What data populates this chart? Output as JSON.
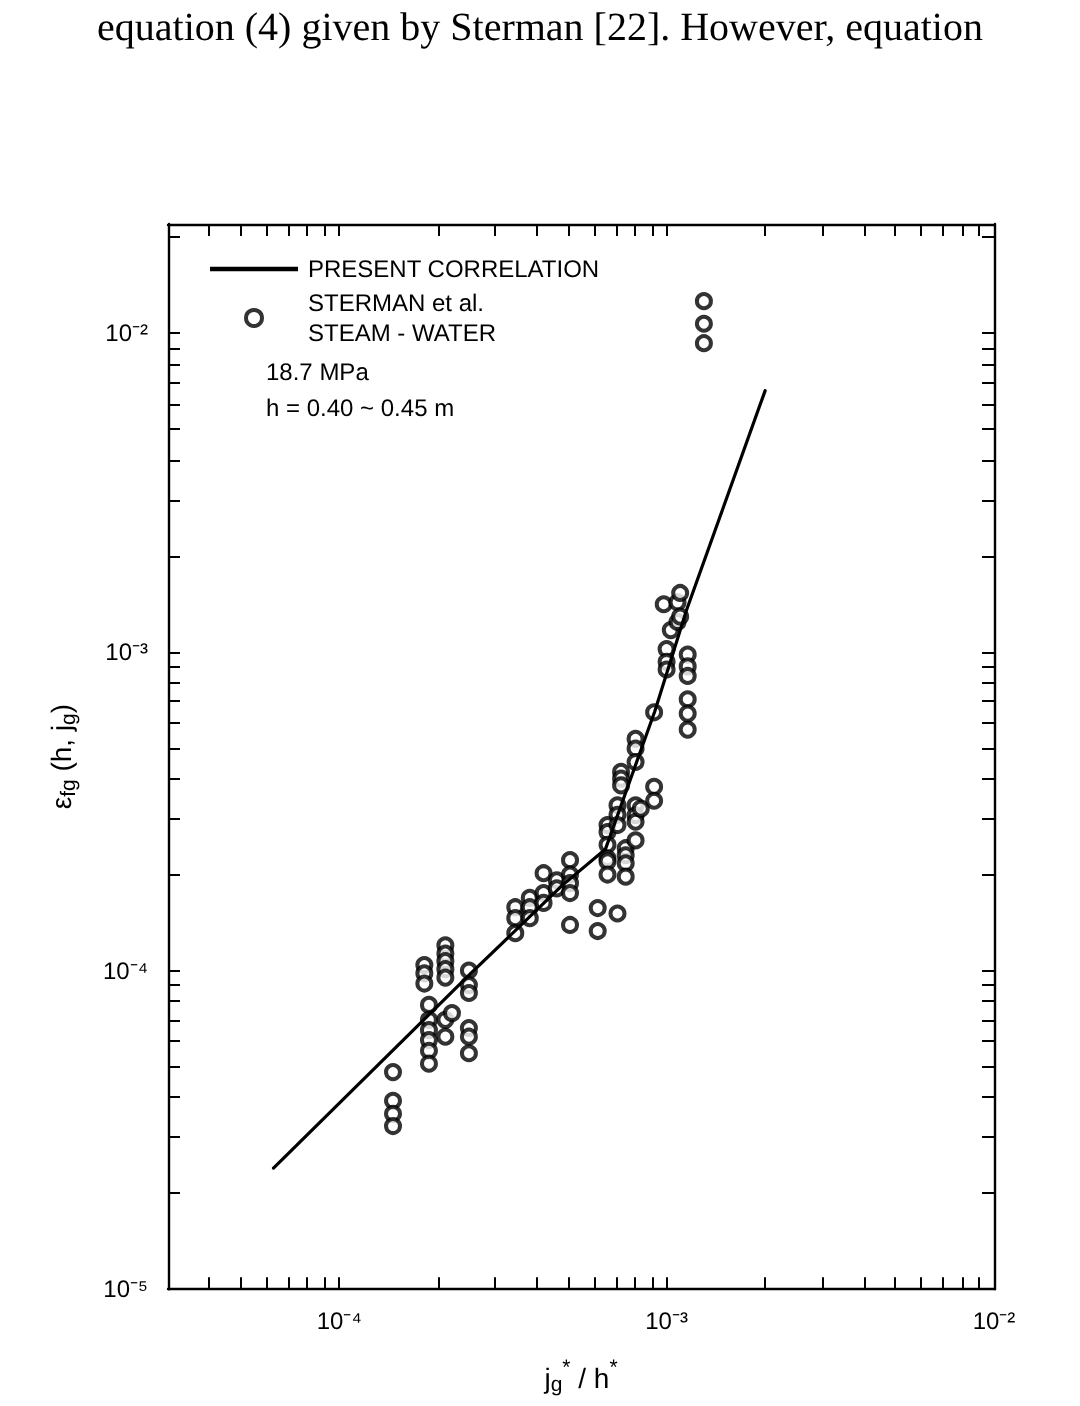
{
  "chart_data": {
    "type": "scatter",
    "xlabel": "j$_{g}$$^{*}$ / h$^{*}$",
    "ylabel": "ε$_{fg}$ (h, j$_{g}$)",
    "annotations": [
      "equation (4) given by Sterman [22]. However, equation",
      "18.7 MPa",
      "h = 0.40 ~ 0.45 m"
    ],
    "log": "xy",
    "grid": false,
    "legend": "top left",
    "xlim": [
      3e-05,
      0.01
    ],
    "ylim": [
      1e-05,
      0.022
    ],
    "xticks": [
      {
        "value": 4e-05,
        "label": null
      },
      {
        "value": 5e-05,
        "label": null
      },
      {
        "value": 6e-05,
        "label": null
      },
      {
        "value": 7e-05,
        "label": null
      },
      {
        "value": 8e-05,
        "label": null
      },
      {
        "value": 9e-05,
        "label": null
      },
      {
        "value": 0.0001,
        "label": "10⁻⁴"
      },
      {
        "value": 0.0002,
        "label": null
      },
      {
        "value": 0.0003,
        "label": null
      },
      {
        "value": 0.0004,
        "label": null
      },
      {
        "value": 0.0005,
        "label": null
      },
      {
        "value": 0.0006,
        "label": null
      },
      {
        "value": 0.0007,
        "label": null
      },
      {
        "value": 0.0008,
        "label": null
      },
      {
        "value": 0.0009,
        "label": null
      },
      {
        "value": 0.001,
        "label": "10⁻³"
      },
      {
        "value": 0.002,
        "label": null
      },
      {
        "value": 0.003,
        "label": null
      },
      {
        "value": 0.004,
        "label": null
      },
      {
        "value": 0.005,
        "label": null
      },
      {
        "value": 0.006,
        "label": null
      },
      {
        "value": 0.007,
        "label": null
      },
      {
        "value": 0.008,
        "label": null
      },
      {
        "value": 0.009,
        "label": null
      },
      {
        "value": 0.01,
        "label": "10⁻²"
      }
    ],
    "yticks": [
      {
        "value": 1e-05,
        "label": "10⁻⁵"
      },
      {
        "value": 2e-05,
        "label": null
      },
      {
        "value": 3e-05,
        "label": null
      },
      {
        "value": 4e-05,
        "label": null
      },
      {
        "value": 5e-05,
        "label": null
      },
      {
        "value": 6e-05,
        "label": null
      },
      {
        "value": 7e-05,
        "label": null
      },
      {
        "value": 8e-05,
        "label": null
      },
      {
        "value": 9e-05,
        "label": null
      },
      {
        "value": 0.0001,
        "label": "10⁻⁴"
      },
      {
        "value": 0.0002,
        "label": null
      },
      {
        "value": 0.0003,
        "label": null
      },
      {
        "value": 0.0004,
        "label": null
      },
      {
        "value": 0.0005,
        "label": null
      },
      {
        "value": 0.0006,
        "label": null
      },
      {
        "value": 0.0007,
        "label": null
      },
      {
        "value": 0.0008,
        "label": null
      },
      {
        "value": 0.0009,
        "label": null
      },
      {
        "value": 0.001,
        "label": "10⁻³"
      },
      {
        "value": 0.002,
        "label": null
      },
      {
        "value": 0.003,
        "label": null
      },
      {
        "value": 0.004,
        "label": null
      },
      {
        "value": 0.005,
        "label": null
      },
      {
        "value": 0.006,
        "label": null
      },
      {
        "value": 0.007,
        "label": null
      },
      {
        "value": 0.008,
        "label": null
      },
      {
        "value": 0.009,
        "label": null
      },
      {
        "value": 0.01,
        "label": "10⁻²"
      },
      {
        "value": 0.02,
        "label": null
      }
    ],
    "series": [
      {
        "name": "PRESENT CORRELATION",
        "type": "line",
        "color": "#000000",
        "marker": "none",
        "line_style": "solid",
        "x": [
          6.3e-05,
          0.00025,
          0.00048,
          0.00065,
          0.00092,
          0.00115,
          0.002
        ],
        "values": [
          2.4e-05,
          9.7e-05,
          0.000185,
          0.00024,
          0.00065,
          0.00135,
          0.0066
        ]
      },
      {
        "name": "STERMAN et al.\nSTEAM - WATER",
        "color": "#000000",
        "marker": "circle",
        "x": [
          0.000146,
          0.000146,
          0.000146,
          0.000146,
          0.000182,
          0.000182,
          0.000182,
          0.000188,
          0.000188,
          0.000188,
          0.000188,
          0.000188,
          0.000188,
          0.000211,
          0.000211,
          0.000211,
          0.000211,
          0.000211,
          0.000211,
          0.000211,
          0.000221,
          0.000249,
          0.000249,
          0.000249,
          0.000249,
          0.000249,
          0.000249,
          0.000345,
          0.000345,
          0.000345,
          0.000382,
          0.000382,
          0.000382,
          0.000421,
          0.000421,
          0.000421,
          0.000462,
          0.000462,
          0.000507,
          0.000507,
          0.000507,
          0.000507,
          0.000507,
          0.000616,
          0.000616,
          0.00066,
          0.00066,
          0.00066,
          0.00066,
          0.00066,
          0.00066,
          0.000708,
          0.000708,
          0.000708,
          0.000708,
          0.000726,
          0.000726,
          0.000726,
          0.00075,
          0.00075,
          0.00075,
          0.00075,
          0.000804,
          0.000804,
          0.000804,
          0.000804,
          0.000804,
          0.000804,
          0.000804,
          0.000834,
          0.000916,
          0.000916,
          0.000916,
          0.001,
          0.001,
          0.001,
          0.00103,
          0.00098,
          0.00108,
          0.00108,
          0.0011,
          0.0011,
          0.00116,
          0.00116,
          0.00116,
          0.00116,
          0.00116,
          0.00116,
          0.0013,
          0.0013,
          0.0013
        ],
        "values": [
          4.8e-05,
          3.9e-05,
          3.55e-05,
          3.25e-05,
          0.000104,
          9.8e-05,
          9.1e-05,
          7.8e-05,
          7e-05,
          6.5e-05,
          6.05e-05,
          5.6e-05,
          5.1e-05,
          0.00012,
          0.000113,
          0.000107,
          0.000101,
          9.5e-05,
          7e-05,
          6.2e-05,
          7.35e-05,
          0.0001,
          9e-05,
          8.5e-05,
          6.6e-05,
          6.2e-05,
          5.5e-05,
          0.000158,
          0.000146,
          0.000131,
          0.000169,
          0.000158,
          0.000146,
          0.000202,
          0.000175,
          0.000163,
          0.000192,
          0.000181,
          0.000222,
          0.0002,
          0.000188,
          0.000175,
          0.000139,
          0.000157,
          0.000133,
          0.000286,
          0.000272,
          0.000248,
          0.000225,
          0.00022,
          0.0002,
          0.00033,
          0.000308,
          0.000286,
          0.000151,
          0.00042,
          0.0004,
          0.000381,
          0.000242,
          0.00023,
          0.000217,
          0.000197,
          0.000533,
          0.000497,
          0.000451,
          0.00033,
          0.000307,
          0.000293,
          0.000256,
          0.000322,
          0.000646,
          0.000377,
          0.000341,
          0.00102,
          0.00093,
          0.00088,
          0.00117,
          0.00141,
          0.00143,
          0.00124,
          0.00153,
          0.00129,
          0.00098,
          0.0009,
          0.00084,
          0.00071,
          0.00064,
          0.00057,
          0.0126,
          0.0107,
          0.0093
        ]
      }
    ]
  }
}
